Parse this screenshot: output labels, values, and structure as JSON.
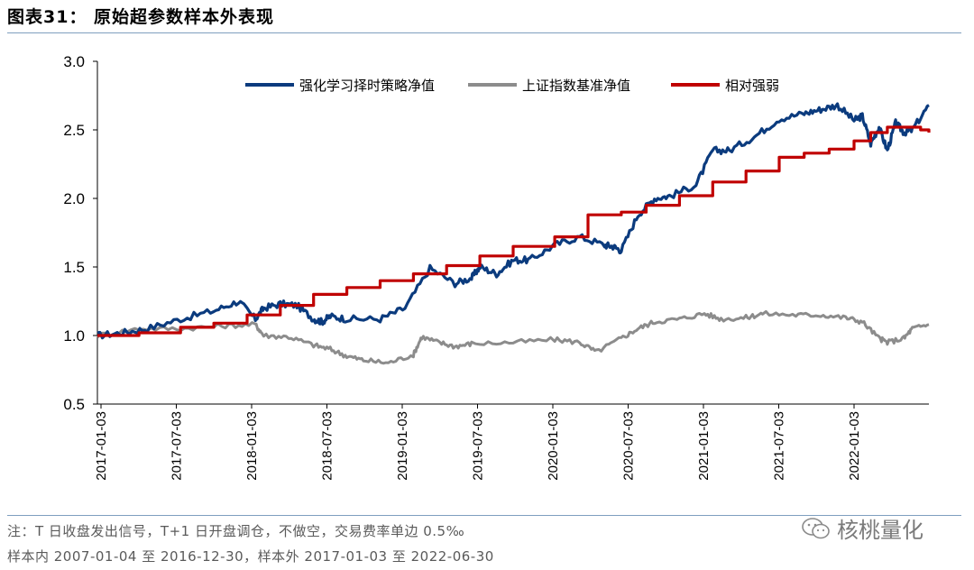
{
  "header": {
    "title": "图表31：  原始超参数样本外表现"
  },
  "chart_data": {
    "type": "line",
    "title": "原始超参数样本外表现",
    "ylim": [
      0.5,
      3.0
    ],
    "yticks": [
      "3.0",
      "2.5",
      "2.0",
      "1.5",
      "1.0",
      "0.5"
    ],
    "x_ticks": [
      "2017-01-03",
      "2017-07-03",
      "2018-01-03",
      "2018-07-03",
      "2019-01-03",
      "2019-07-03",
      "2020-01-03",
      "2020-07-03",
      "2021-01-03",
      "2021-07-03",
      "2022-01-03"
    ],
    "series": [
      {
        "name": "强化学习择时策略净值",
        "color": "#0b3b7e",
        "x": [
          0,
          0.03,
          0.06,
          0.1,
          0.14,
          0.17,
          0.19,
          0.2,
          0.22,
          0.24,
          0.26,
          0.27,
          0.28,
          0.3,
          0.34,
          0.37,
          0.4,
          0.43,
          0.45,
          0.46,
          0.48,
          0.5,
          0.52,
          0.55,
          0.58,
          0.61,
          0.62,
          0.63,
          0.65,
          0.67,
          0.69,
          0.72,
          0.74,
          0.76,
          0.79,
          0.82,
          0.85,
          0.87,
          0.89,
          0.91,
          0.92,
          0.93,
          0.94,
          0.95,
          0.96,
          0.97,
          0.98,
          1.0
        ],
        "values": [
          1.0,
          1.02,
          1.05,
          1.12,
          1.18,
          1.25,
          1.12,
          1.2,
          1.23,
          1.22,
          1.12,
          1.1,
          1.14,
          1.12,
          1.12,
          1.2,
          1.49,
          1.38,
          1.42,
          1.5,
          1.45,
          1.55,
          1.55,
          1.66,
          1.72,
          1.66,
          1.65,
          1.62,
          1.88,
          2.0,
          2.02,
          2.1,
          2.35,
          2.35,
          2.45,
          2.58,
          2.62,
          2.65,
          2.68,
          2.57,
          2.6,
          2.4,
          2.52,
          2.35,
          2.55,
          2.48,
          2.5,
          2.68
        ]
      },
      {
        "name": "上证指数基准净值",
        "color": "#8c8c8c",
        "x": [
          0,
          0.05,
          0.1,
          0.15,
          0.19,
          0.2,
          0.23,
          0.26,
          0.28,
          0.3,
          0.32,
          0.35,
          0.38,
          0.39,
          0.41,
          0.43,
          0.45,
          0.5,
          0.55,
          0.58,
          0.6,
          0.63,
          0.65,
          0.67,
          0.7,
          0.73,
          0.75,
          0.78,
          0.8,
          0.84,
          0.87,
          0.9,
          0.92,
          0.94,
          0.95,
          0.97,
          0.98,
          1.0
        ],
        "values": [
          1.0,
          1.05,
          1.05,
          1.07,
          1.08,
          1.0,
          0.99,
          0.93,
          0.9,
          0.85,
          0.82,
          0.8,
          0.86,
          0.99,
          0.95,
          0.92,
          0.94,
          0.95,
          0.97,
          0.95,
          0.88,
          0.98,
          1.05,
          1.1,
          1.12,
          1.16,
          1.12,
          1.13,
          1.16,
          1.15,
          1.15,
          1.13,
          1.1,
          0.98,
          0.95,
          0.98,
          1.05,
          1.08
        ]
      },
      {
        "name": "相对强弱",
        "color": "#c00000",
        "x": [
          0,
          0.05,
          0.1,
          0.14,
          0.18,
          0.22,
          0.26,
          0.3,
          0.34,
          0.38,
          0.42,
          0.46,
          0.5,
          0.55,
          0.59,
          0.63,
          0.66,
          0.7,
          0.74,
          0.78,
          0.82,
          0.85,
          0.88,
          0.91,
          0.93,
          0.95,
          0.97,
          0.99,
          1.0
        ],
        "values": [
          1.0,
          1.02,
          1.06,
          1.09,
          1.15,
          1.22,
          1.3,
          1.35,
          1.4,
          1.45,
          1.51,
          1.58,
          1.65,
          1.72,
          1.88,
          1.9,
          1.95,
          2.02,
          2.12,
          2.2,
          2.3,
          2.33,
          2.36,
          2.42,
          2.48,
          2.52,
          2.52,
          2.5,
          2.48
        ]
      }
    ]
  },
  "notes": {
    "line1": "注：T 日收盘发出信号，T+1 日开盘调仓，不做空，交易费率单边 0.5‰",
    "line2": "样本内 2007-01-04 至 2016-12-30，样本外 2017-01-03 至 2022-06-30"
  },
  "watermark": {
    "icon": "wechat-icon",
    "text": "核桃量化"
  }
}
